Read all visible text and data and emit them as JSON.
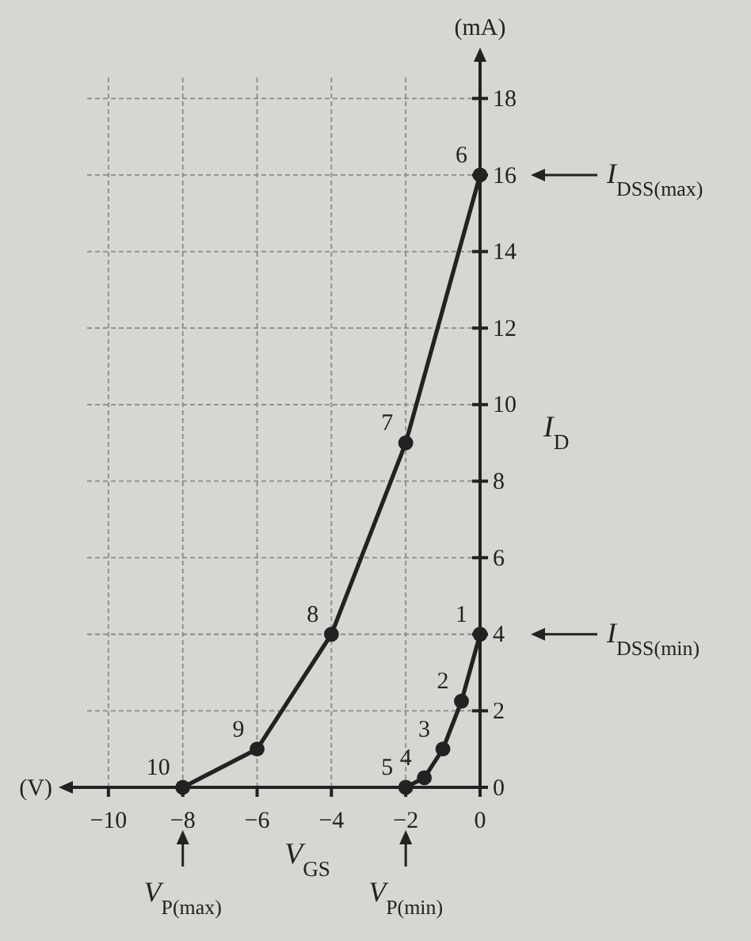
{
  "chart_data": {
    "type": "line",
    "xlabel": "V$_{GS}$",
    "ylabel": "I$_{D}$",
    "xlim": [
      -11,
      0
    ],
    "ylim": [
      0,
      19
    ],
    "xticks": [
      -10,
      -8,
      -6,
      -4,
      -2,
      0
    ],
    "yticks": [
      0,
      2,
      4,
      6,
      8,
      10,
      12,
      14,
      16,
      18
    ],
    "grid": true,
    "marker": "circle",
    "line_style": "solid",
    "series": [
      {
        "color": "#222222",
        "x": [
          -8,
          -6,
          -4,
          -2,
          0
        ],
        "values": [
          0,
          1,
          4,
          9,
          16
        ]
      },
      {
        "color": "#222222",
        "x": [
          -2,
          -1.5,
          -1,
          -0.5,
          0
        ],
        "values": [
          0,
          0.25,
          1,
          2.25,
          4
        ]
      }
    ],
    "annotations": [
      "(mA)",
      "(V)",
      "I$_{DSS(max)}$",
      "I$_{DSS(min)}$",
      "V$_{P(max)}$",
      "V$_{P(min)}$",
      {
        "text": "1",
        "x": 0,
        "y": 4
      },
      {
        "text": "2",
        "x": -0.5,
        "y": 2.25
      },
      {
        "text": "3",
        "x": -1,
        "y": 1
      },
      {
        "text": "4",
        "x": -1.5,
        "y": 0.25
      },
      {
        "text": "5",
        "x": -2,
        "y": 0
      },
      {
        "text": "6",
        "x": 0,
        "y": 16
      },
      {
        "text": "7",
        "x": -2,
        "y": 9
      },
      {
        "text": "8",
        "x": -4,
        "y": 4
      },
      {
        "text": "9",
        "x": -6,
        "y": 1
      },
      {
        "text": "10",
        "x": -8,
        "y": 0
      }
    ]
  }
}
